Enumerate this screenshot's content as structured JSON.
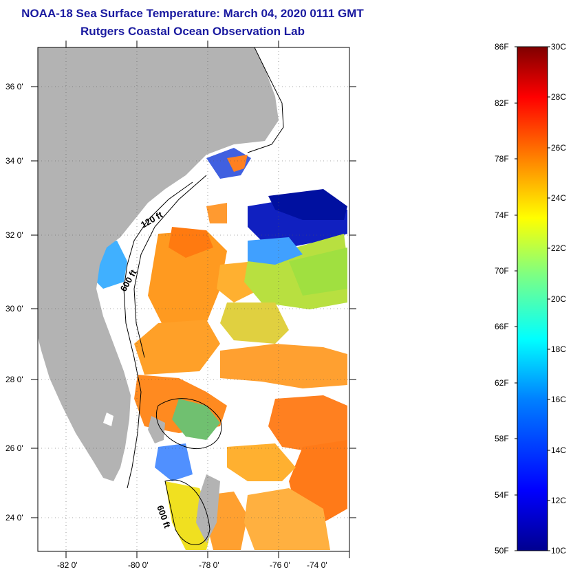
{
  "title": {
    "line1": "NOAA-18 Sea Surface Temperature:  March 04, 2020 0111 GMT",
    "line2": "Rutgers Coastal Ocean Observation Lab"
  },
  "map": {
    "lon_range": [
      -83,
      -73
    ],
    "lat_range": [
      23,
      37
    ],
    "lon_ticks": [
      "-82 0'",
      "-80 0'",
      "-78 0'",
      "-76 0'",
      "-74 0'"
    ],
    "lat_ticks": [
      "24 0'",
      "26 0'",
      "28 0'",
      "30 0'",
      "32 0'",
      "34 0'",
      "36 0'"
    ],
    "contour_labels": [
      "120 ft",
      "600 ft",
      "600 ft"
    ],
    "land_color": "#b3b3b3",
    "cloud_color": "#ffffff"
  },
  "colorbar": {
    "fahrenheit_labels": [
      "86F",
      "82F",
      "78F",
      "74F",
      "70F",
      "66F",
      "62F",
      "58F",
      "54F",
      "50F"
    ],
    "celsius_labels": [
      "30C",
      "28C",
      "26C",
      "24C",
      "22C",
      "20C",
      "18C",
      "16C",
      "14C",
      "12C",
      "10C"
    ],
    "colors": [
      "#7f0000",
      "#ff0000",
      "#ff8000",
      "#ffff00",
      "#80ff80",
      "#00ffff",
      "#0080ff",
      "#0000ff",
      "#00008f"
    ]
  }
}
